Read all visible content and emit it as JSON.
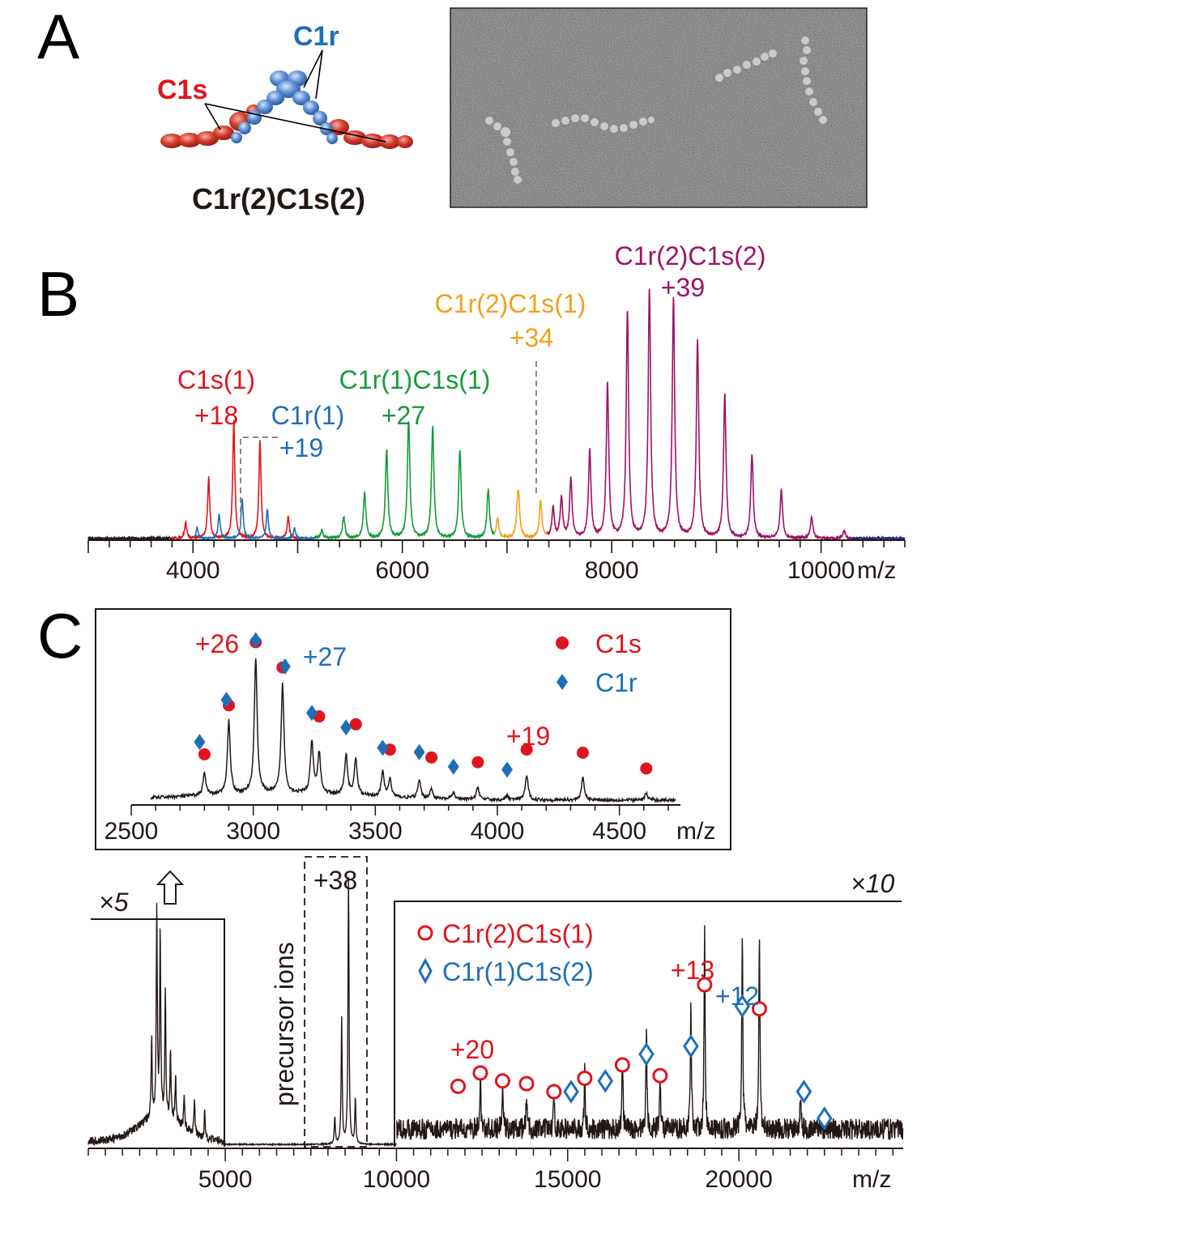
{
  "panel_letters": {
    "a": "A",
    "b": "B",
    "c": "C"
  },
  "colors": {
    "c1s": "#e0141e",
    "c1r": "#1e6fb8",
    "c1r1c1s1": "#169a3c",
    "c1r2c1s1": "#f0a01c",
    "c1r2c1s2": "#9e1266",
    "dark": "#231815",
    "navy": "#1a237e"
  },
  "panel_a": {
    "label_c1r": "C1r",
    "label_c1s": "C1s",
    "complex": "C1r(2)C1s(2)"
  },
  "panel_b": {
    "ann_c1s1_name": "C1s(1)",
    "ann_c1s1_charge": "+18",
    "ann_c1r1_name": "C1r(1)",
    "ann_c1r1_charge": "+19",
    "ann_c1r1c1s1_name": "C1r(1)C1s(1)",
    "ann_c1r1c1s1_charge": "+27",
    "ann_c1r2c1s1_name": "C1r(2)C1s(1)",
    "ann_c1r2c1s1_charge": "+34",
    "ann_c1r2c1s2_name": "C1r(2)C1s(2)",
    "ann_c1r2c1s2_charge": "+39",
    "xunit": "m/z"
  },
  "panel_c_inset": {
    "legend_c1s": "C1s",
    "legend_c1r": "C1r",
    "ann_26": "+26",
    "ann_27": "+27",
    "ann_19": "+19",
    "xunit": "m/z"
  },
  "panel_c_main": {
    "mag_left": "×5",
    "mag_right": "×10",
    "precursor_label": "precursor ions",
    "precursor_charge": "+38",
    "legend_open_circle": "C1r(2)C1s(1)",
    "legend_open_diamond": "C1r(1)C1s(2)",
    "ann_20": "+20",
    "ann_13": "+13",
    "ann_12": "+12",
    "xunit": "m/z"
  },
  "chart_data": [
    {
      "type": "line",
      "panel": "B",
      "xlabel": "m/z",
      "xlim": [
        3000,
        10800
      ],
      "xticks": [
        4000,
        6000,
        8000,
        10000
      ],
      "series": [
        {
          "name": "C1s(1)",
          "color": "#e0141e",
          "peaks": [
            [
              3930,
              0.06
            ],
            [
              4150,
              0.23
            ],
            [
              4390,
              0.44
            ],
            [
              4640,
              0.37
            ],
            [
              4910,
              0.08
            ]
          ]
        },
        {
          "name": "C1r(1)",
          "color": "#1e6fb8",
          "peaks": [
            [
              4040,
              0.04
            ],
            [
              4250,
              0.09
            ],
            [
              4470,
              0.15
            ],
            [
              4710,
              0.11
            ],
            [
              4970,
              0.04
            ]
          ]
        },
        {
          "name": "C1r(1)C1s(1)",
          "color": "#169a3c",
          "peaks": [
            [
              5230,
              0.03
            ],
            [
              5440,
              0.08
            ],
            [
              5640,
              0.17
            ],
            [
              5850,
              0.33
            ],
            [
              6060,
              0.44
            ],
            [
              6290,
              0.42
            ],
            [
              6550,
              0.33
            ],
            [
              6820,
              0.18
            ],
            [
              7100,
              0.07
            ]
          ]
        },
        {
          "name": "C1r(2)C1s(1)",
          "color": "#f0a01c",
          "peaks": [
            [
              6910,
              0.07
            ],
            [
              7110,
              0.13
            ],
            [
              7320,
              0.14
            ],
            [
              7520,
              0.15
            ]
          ]
        },
        {
          "name": "C1r(2)C1s(2)",
          "color": "#9e1266",
          "peaks": [
            [
              7440,
              0.11
            ],
            [
              7610,
              0.22
            ],
            [
              7790,
              0.33
            ],
            [
              7960,
              0.58
            ],
            [
              8150,
              0.85
            ],
            [
              8360,
              0.93
            ],
            [
              8590,
              0.9
            ],
            [
              8820,
              0.74
            ],
            [
              9080,
              0.54
            ],
            [
              9340,
              0.31
            ],
            [
              9620,
              0.18
            ],
            [
              9910,
              0.08
            ],
            [
              10220,
              0.03
            ]
          ]
        }
      ],
      "dashed_markers": [
        {
          "from": 4390,
          "to": 4470
        },
        {
          "at": 7320
        }
      ]
    },
    {
      "type": "line",
      "panel": "C-inset",
      "xlabel": "m/z",
      "xlim": [
        2500,
        4750
      ],
      "xticks": [
        2500,
        3000,
        3500,
        4000,
        4500
      ],
      "peaks": [
        [
          2800,
          0.16
        ],
        [
          2900,
          0.54
        ],
        [
          3010,
          1.0
        ],
        [
          3120,
          0.8
        ],
        [
          3240,
          0.38
        ],
        [
          3270,
          0.3
        ],
        [
          3380,
          0.3
        ],
        [
          3420,
          0.27
        ],
        [
          3530,
          0.18
        ],
        [
          3560,
          0.13
        ],
        [
          3680,
          0.13
        ],
        [
          3730,
          0.07
        ],
        [
          3820,
          0.05
        ],
        [
          3920,
          0.09
        ],
        [
          4040,
          0.03
        ],
        [
          4120,
          0.18
        ],
        [
          4350,
          0.16
        ],
        [
          4610,
          0.05
        ]
      ],
      "c1s_markers": [
        [
          2800,
          0.29
        ],
        [
          2900,
          0.6
        ],
        [
          3010,
          1.0
        ],
        [
          3120,
          0.84
        ],
        [
          3270,
          0.53
        ],
        [
          3420,
          0.48
        ],
        [
          3560,
          0.32
        ],
        [
          3730,
          0.27
        ],
        [
          3920,
          0.24
        ],
        [
          4120,
          0.32
        ],
        [
          4350,
          0.3
        ],
        [
          4610,
          0.2
        ]
      ],
      "c1r_markers": [
        [
          2780,
          0.4
        ],
        [
          2890,
          0.69
        ],
        [
          3010,
          1.1
        ],
        [
          3130,
          0.92
        ],
        [
          3240,
          0.6
        ],
        [
          3380,
          0.5
        ],
        [
          3530,
          0.36
        ],
        [
          3680,
          0.33
        ],
        [
          3820,
          0.23
        ],
        [
          4040,
          0.21
        ]
      ]
    },
    {
      "type": "line",
      "panel": "C",
      "xlabel": "m/z",
      "xlim": [
        1000,
        24800
      ],
      "xticks": [
        5000,
        10000,
        15000,
        20000
      ],
      "sections": [
        {
          "range": [
            1000,
            5000
          ],
          "magnification": "×5"
        },
        {
          "range": [
            7400,
            9100
          ],
          "label": "precursor ions",
          "charge": "+38"
        },
        {
          "range": [
            10000,
            24800
          ],
          "magnification": "×10"
        }
      ],
      "peaks": [
        [
          3000,
          0.78
        ],
        [
          3100,
          0.69
        ],
        [
          3250,
          0.46
        ],
        [
          2850,
          0.3
        ],
        [
          3400,
          0.25
        ],
        [
          3550,
          0.17
        ],
        [
          3800,
          0.12
        ],
        [
          4100,
          0.13
        ],
        [
          4400,
          0.1
        ],
        [
          8600,
          1.0
        ],
        [
          8400,
          0.47
        ],
        [
          8800,
          0.17
        ],
        [
          8200,
          0.1
        ],
        [
          12450,
          0.2
        ],
        [
          13100,
          0.17
        ],
        [
          13800,
          0.14
        ],
        [
          14600,
          0.12
        ],
        [
          15500,
          0.21
        ],
        [
          16600,
          0.27
        ],
        [
          17300,
          0.38
        ],
        [
          17700,
          0.21
        ],
        [
          18600,
          0.49
        ],
        [
          19000,
          0.75
        ],
        [
          20100,
          0.75
        ],
        [
          20600,
          0.74
        ],
        [
          21800,
          0.13
        ]
      ],
      "open_circle_markers_C1r2C1s1": [
        [
          11800,
          0.22
        ],
        [
          12450,
          0.27
        ],
        [
          13100,
          0.24
        ],
        [
          13800,
          0.23
        ],
        [
          14600,
          0.2
        ],
        [
          15500,
          0.25
        ],
        [
          16600,
          0.3
        ],
        [
          17700,
          0.26
        ],
        [
          19000,
          0.6
        ],
        [
          20600,
          0.51
        ]
      ],
      "open_diamond_markers_C1r1C1s2": [
        [
          15100,
          0.2
        ],
        [
          16100,
          0.24
        ],
        [
          17300,
          0.34
        ],
        [
          18600,
          0.37
        ],
        [
          20100,
          0.52
        ],
        [
          21900,
          0.2
        ],
        [
          22500,
          0.1
        ]
      ]
    }
  ]
}
